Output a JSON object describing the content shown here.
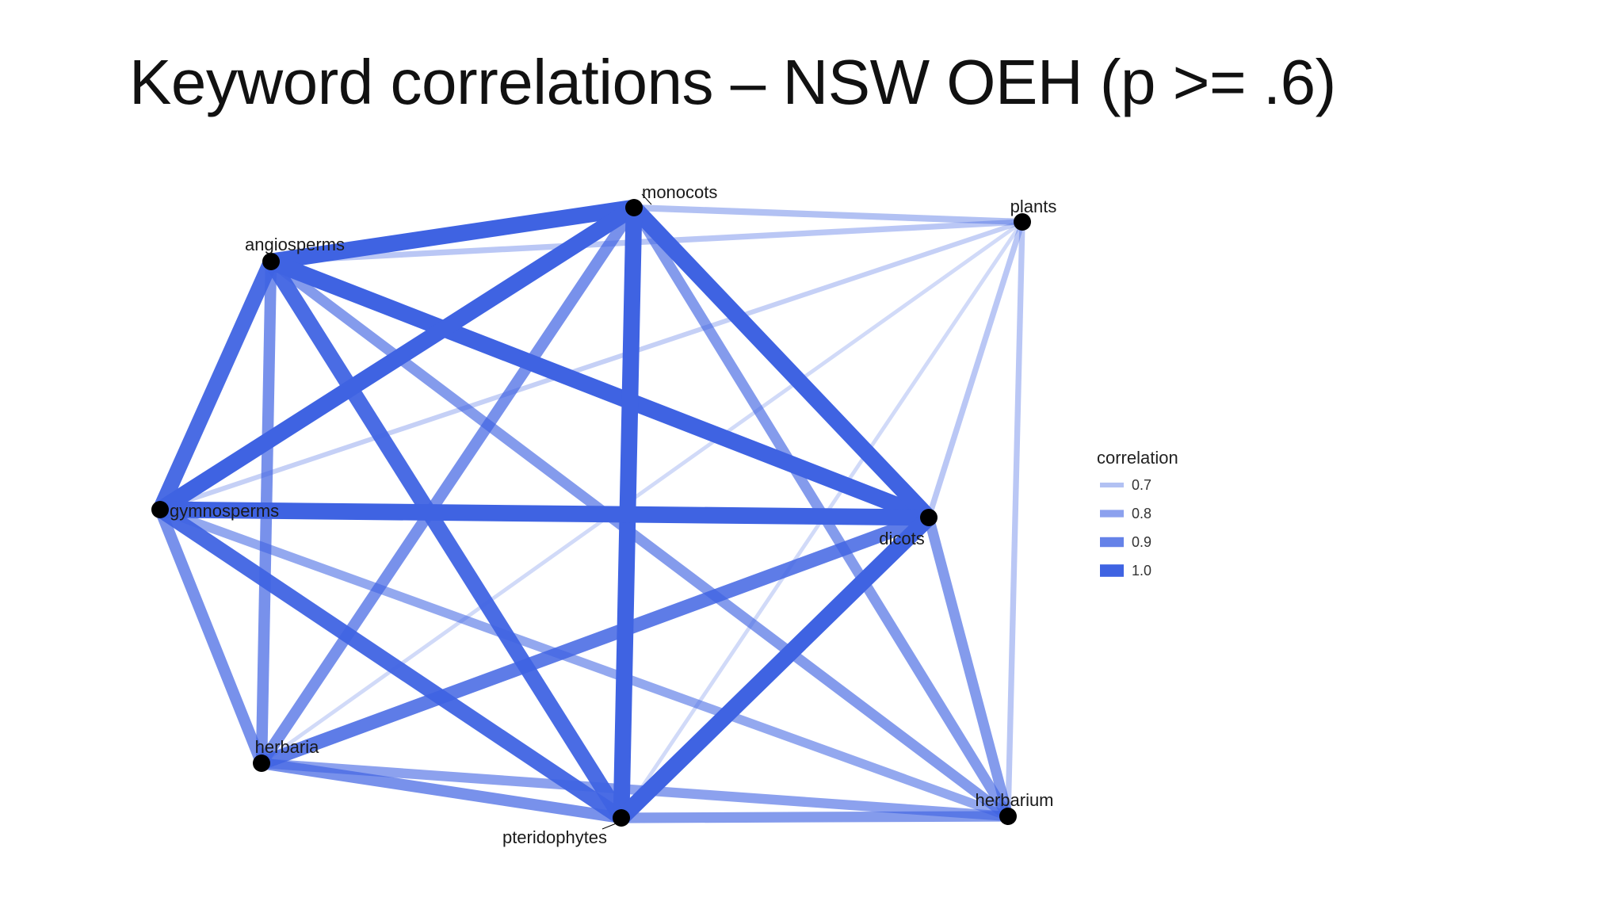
{
  "title": "Keyword correlations – NSW OEH (p >= .6)",
  "edge_color": "#3f63e2",
  "node_color": "#000000",
  "nodes": [
    {
      "id": "monocots",
      "label": "monocots"
    },
    {
      "id": "plants",
      "label": "plants"
    },
    {
      "id": "angiosperms",
      "label": "angiosperms"
    },
    {
      "id": "gymnosperms",
      "label": "gymnosperms"
    },
    {
      "id": "dicots",
      "label": "dicots"
    },
    {
      "id": "herbaria",
      "label": "herbaria"
    },
    {
      "id": "pteridophytes",
      "label": "pteridophytes"
    },
    {
      "id": "herbarium",
      "label": "herbarium"
    }
  ],
  "edges": [
    {
      "source": "angiosperms",
      "target": "monocots",
      "correlation": 1.0
    },
    {
      "source": "angiosperms",
      "target": "gymnosperms",
      "correlation": 0.97
    },
    {
      "source": "angiosperms",
      "target": "dicots",
      "correlation": 1.0
    },
    {
      "source": "angiosperms",
      "target": "herbaria",
      "correlation": 0.85
    },
    {
      "source": "angiosperms",
      "target": "pteridophytes",
      "correlation": 0.97
    },
    {
      "source": "angiosperms",
      "target": "herbarium",
      "correlation": 0.82
    },
    {
      "source": "angiosperms",
      "target": "plants",
      "correlation": 0.68
    },
    {
      "source": "monocots",
      "target": "gymnosperms",
      "correlation": 1.0
    },
    {
      "source": "monocots",
      "target": "dicots",
      "correlation": 1.0
    },
    {
      "source": "monocots",
      "target": "pteridophytes",
      "correlation": 1.0
    },
    {
      "source": "monocots",
      "target": "herbaria",
      "correlation": 0.85
    },
    {
      "source": "monocots",
      "target": "herbarium",
      "correlation": 0.82
    },
    {
      "source": "monocots",
      "target": "plants",
      "correlation": 0.7
    },
    {
      "source": "gymnosperms",
      "target": "dicots",
      "correlation": 1.0
    },
    {
      "source": "gymnosperms",
      "target": "herbaria",
      "correlation": 0.85
    },
    {
      "source": "gymnosperms",
      "target": "pteridophytes",
      "correlation": 0.97
    },
    {
      "source": "gymnosperms",
      "target": "herbarium",
      "correlation": 0.78
    },
    {
      "source": "gymnosperms",
      "target": "plants",
      "correlation": 0.65
    },
    {
      "source": "dicots",
      "target": "pteridophytes",
      "correlation": 1.0
    },
    {
      "source": "dicots",
      "target": "herbaria",
      "correlation": 0.92
    },
    {
      "source": "dicots",
      "target": "herbarium",
      "correlation": 0.82
    },
    {
      "source": "dicots",
      "target": "plants",
      "correlation": 0.68
    },
    {
      "source": "herbaria",
      "target": "pteridophytes",
      "correlation": 0.85
    },
    {
      "source": "herbaria",
      "target": "herbarium",
      "correlation": 0.8
    },
    {
      "source": "herbaria",
      "target": "plants",
      "correlation": 0.62
    },
    {
      "source": "pteridophytes",
      "target": "herbarium",
      "correlation": 0.82
    },
    {
      "source": "pteridophytes",
      "target": "plants",
      "correlation": 0.62
    },
    {
      "source": "herbarium",
      "target": "plants",
      "correlation": 0.68
    }
  ],
  "legend": {
    "title": "correlation",
    "items": [
      {
        "label": "0.7",
        "value": 0.7
      },
      {
        "label": "0.8",
        "value": 0.8
      },
      {
        "label": "0.9",
        "value": 0.9
      },
      {
        "label": "1.0",
        "value": 1.0
      }
    ]
  }
}
